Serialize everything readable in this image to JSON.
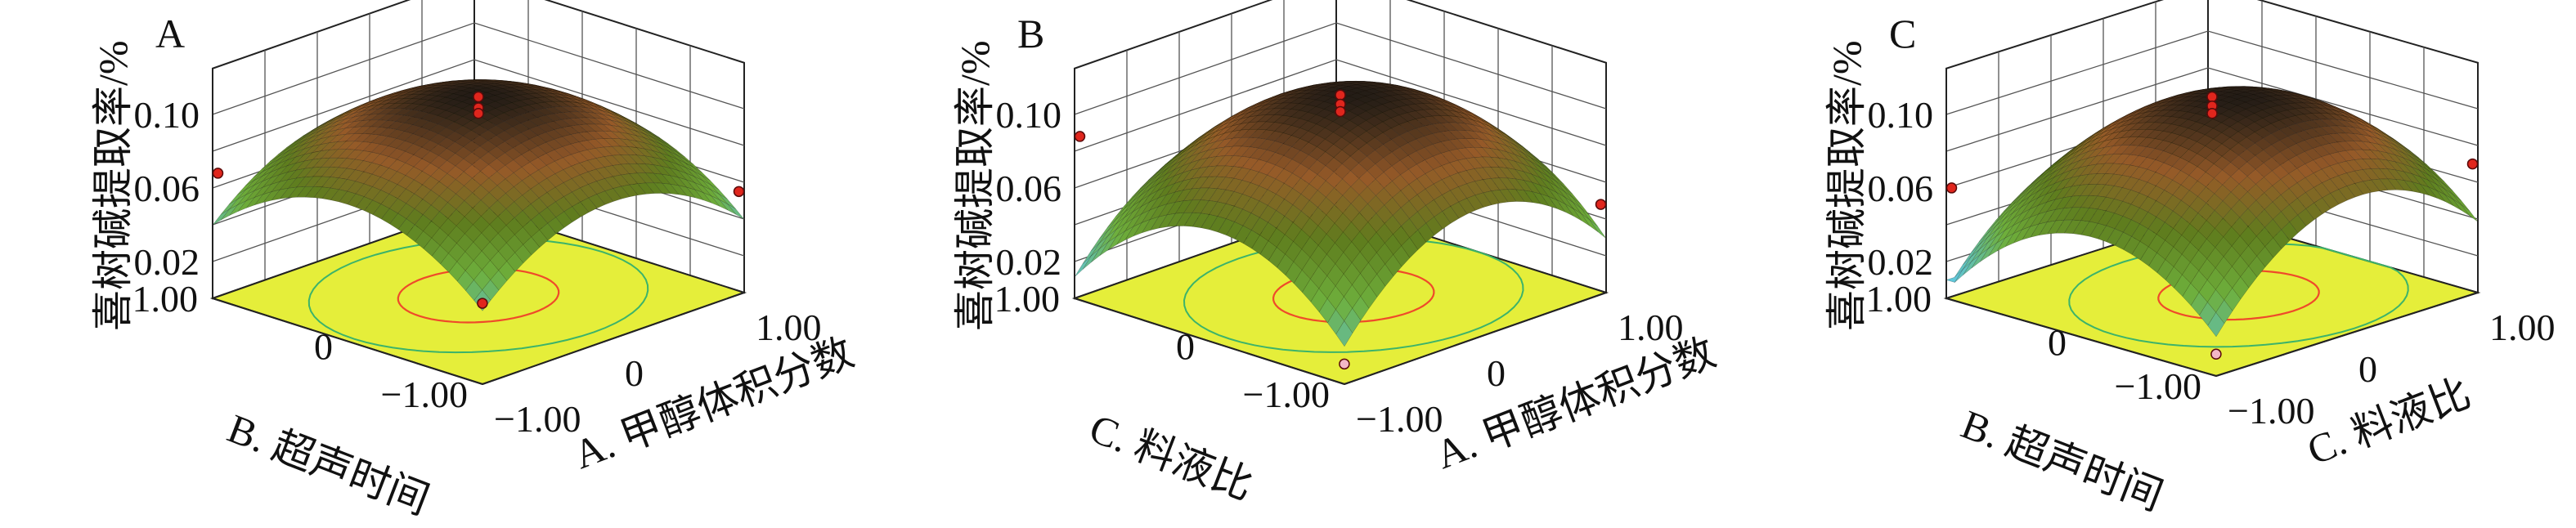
{
  "chart_data": [
    {
      "type": "surface3d",
      "panel_label": "A",
      "zlabel": "喜树碱提取率/%",
      "z_ticks": [
        "0.02",
        "0.06",
        "0.10"
      ],
      "zlim": [
        0,
        0.12
      ],
      "x_axis": {
        "label": "A. 甲醇体积分数",
        "ticks": [
          "−1.00",
          "0",
          "1.00"
        ],
        "range": [
          -1,
          1
        ]
      },
      "y_axis": {
        "label": "B. 超声时间",
        "ticks": [
          "1.00",
          "0",
          "−1.00"
        ],
        "range": [
          -1,
          1
        ]
      },
      "surface_range": [
        0.03,
        0.109
      ],
      "surface_center": [
        0,
        0
      ],
      "floor_contour": "yellow",
      "design_points": [
        {
          "x": 0,
          "y": 0,
          "z": 0.108
        },
        {
          "x": 0,
          "y": 0,
          "z": 0.102
        },
        {
          "x": 0,
          "y": 0,
          "z": 0.099
        },
        {
          "x": -1,
          "y": 1,
          "z": 0.068
        },
        {
          "x": 1,
          "y": -1,
          "z": 0.055
        },
        {
          "x": -1,
          "y": -1,
          "z": 0.043
        }
      ]
    },
    {
      "type": "surface3d",
      "panel_label": "B",
      "zlabel": "喜树碱提取率/%",
      "z_ticks": [
        "0.02",
        "0.06",
        "0.10"
      ],
      "zlim": [
        0,
        0.12
      ],
      "x_axis": {
        "label": "A. 甲醇体积分数",
        "ticks": [
          "−1.00",
          "0",
          "1.00"
        ],
        "range": [
          -1,
          1
        ]
      },
      "y_axis": {
        "label": "C. 料液比",
        "ticks": [
          "1.00",
          "0",
          "−1.00"
        ],
        "range": [
          -1,
          1
        ]
      },
      "surface_range": [
        0.008,
        0.11
      ],
      "surface_center": [
        0.05,
        -0.05
      ],
      "floor_contour": "yellow",
      "design_points": [
        {
          "x": 0,
          "y": 0,
          "z": 0.109
        },
        {
          "x": 0,
          "y": 0,
          "z": 0.104
        },
        {
          "x": 0,
          "y": 0,
          "z": 0.1
        },
        {
          "x": -1,
          "y": 1,
          "z": 0.088
        },
        {
          "x": 1,
          "y": -1,
          "z": 0.048
        },
        {
          "x": -1,
          "y": -1,
          "z": 0.01
        }
      ]
    },
    {
      "type": "surface3d",
      "panel_label": "C",
      "zlabel": "喜树碱提取率/%",
      "z_ticks": [
        "0.02",
        "0.06",
        "0.10"
      ],
      "zlim": [
        0,
        0.12
      ],
      "x_axis": {
        "label": "C. 料液比",
        "ticks": [
          "−1.00",
          "0",
          "1.00"
        ],
        "range": [
          -1,
          1
        ]
      },
      "y_axis": {
        "label": "B. 超声时间",
        "ticks": [
          "1.00",
          "0",
          "−1.00"
        ],
        "range": [
          -1,
          1
        ]
      },
      "surface_range": [
        0.01,
        0.108
      ],
      "surface_center": [
        0.1,
        -0.1
      ],
      "floor_contour": "yellow",
      "design_points": [
        {
          "x": 0,
          "y": 0,
          "z": 0.108
        },
        {
          "x": 0,
          "y": 0,
          "z": 0.103
        },
        {
          "x": 0,
          "y": 0,
          "z": 0.099
        },
        {
          "x": -1,
          "y": 1,
          "z": 0.06
        },
        {
          "x": 1,
          "y": -1,
          "z": 0.07
        },
        {
          "x": -1,
          "y": -1,
          "z": 0.011
        }
      ]
    }
  ]
}
